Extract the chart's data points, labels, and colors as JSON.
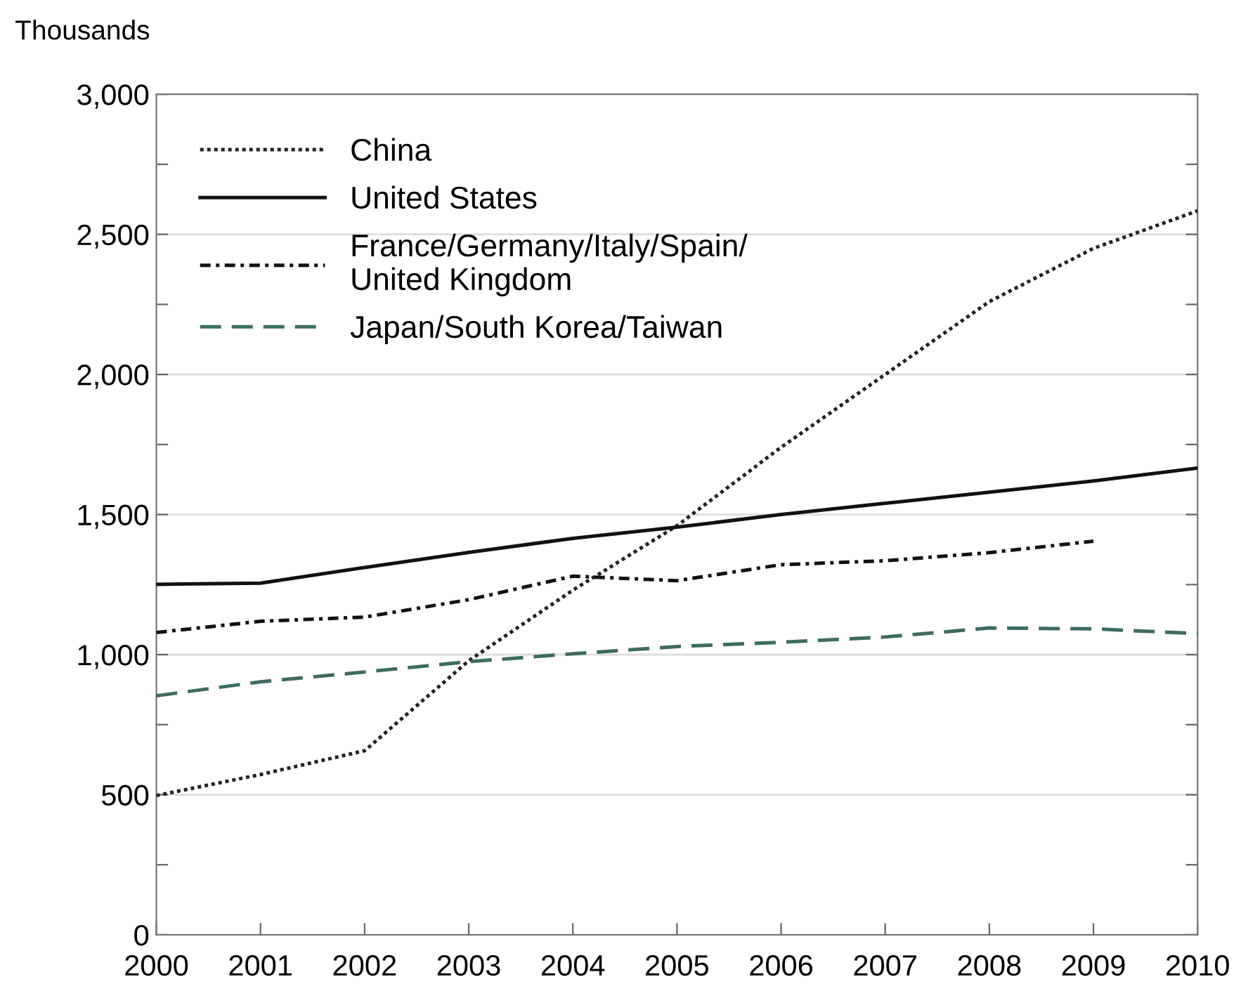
{
  "chart_data": {
    "type": "line",
    "ylabel": "Thousands",
    "x": [
      2000,
      2001,
      2002,
      2003,
      2004,
      2005,
      2006,
      2007,
      2008,
      2009,
      2010
    ],
    "xlim": [
      2000,
      2010
    ],
    "xticks": [
      2000,
      2001,
      2002,
      2003,
      2004,
      2005,
      2006,
      2007,
      2008,
      2009,
      2010
    ],
    "ylim": [
      0,
      3000
    ],
    "yticks": [
      0,
      {
        "value": 250,
        "label": null
      },
      {
        "value": 500,
        "label": "500"
      },
      {
        "value": 750,
        "label": null
      },
      {
        "value": 1000,
        "label": "1,000"
      },
      {
        "value": 1250,
        "label": null
      },
      {
        "value": 1500,
        "label": "1,500"
      },
      {
        "value": 1750,
        "label": null
      },
      {
        "value": 2000,
        "label": "2,000"
      },
      {
        "value": 2250,
        "label": null
      },
      {
        "value": 2500,
        "label": "2,500"
      },
      {
        "value": 2750,
        "label": null
      },
      {
        "value": 3000,
        "label": "3,000"
      }
    ],
    "grid": "y",
    "legend": "top left",
    "marker": "none",
    "series": [
      {
        "name": "China",
        "color": "#222222",
        "line_style": "dotted",
        "values": [
          497,
          572,
          657,
          978,
          1230,
          1460,
          1740,
          2000,
          2260,
          2450,
          2584
        ]
      },
      {
        "name": "United States",
        "color": "#111111",
        "line_style": "solid",
        "values": [
          1251,
          1255,
          1311,
          1365,
          1415,
          1455,
          1500,
          1540,
          1580,
          1620,
          1666
        ]
      },
      {
        "name": "France/Germany/Italy/Spain/\nUnited Kingdom",
        "color": "#111111",
        "line_style": "dashdot",
        "values": [
          1079,
          1119,
          1134,
          1196,
          1280,
          1264,
          1321,
          1335,
          1364,
          1405,
          null
        ]
      },
      {
        "name": "Japan/South Korea/Taiwan",
        "color": "#3d6b62",
        "line_style": "dashed",
        "values": [
          853,
          903,
          938,
          975,
          1003,
          1029,
          1044,
          1063,
          1095,
          1092,
          1075
        ]
      }
    ]
  }
}
